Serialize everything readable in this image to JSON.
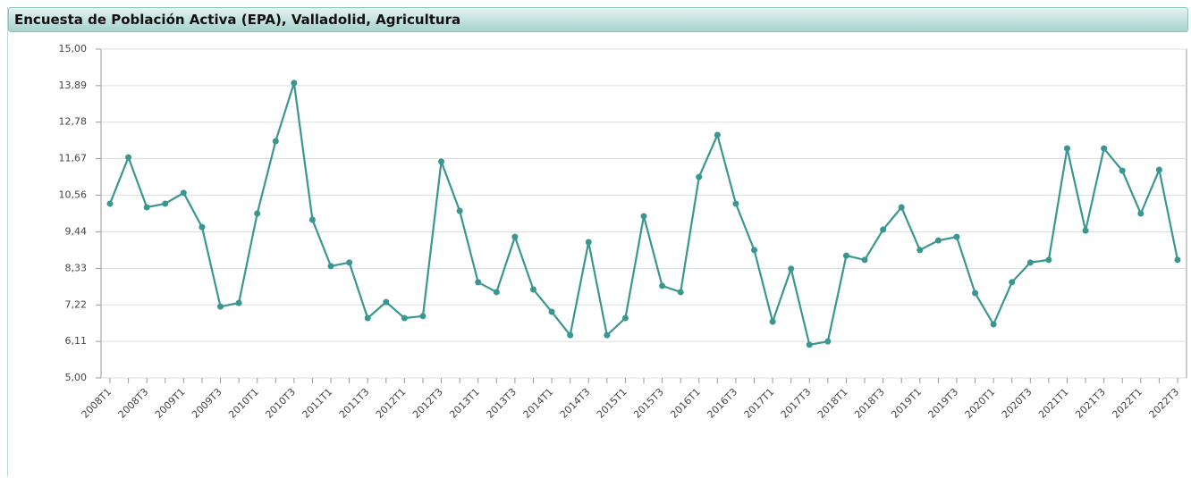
{
  "chart_data": {
    "type": "line",
    "title": "Encuesta de Población Activa (EPA), Valladolid, Agricultura",
    "categories": [
      "2008T1",
      null,
      "2008T3",
      null,
      "2009T1",
      null,
      "2009T3",
      null,
      "2010T1",
      null,
      "2010T3",
      null,
      "2011T1",
      null,
      "2011T3",
      null,
      "2012T1",
      null,
      "2012T3",
      null,
      "2013T1",
      null,
      "2013T3",
      null,
      "2014T1",
      null,
      "2014T3",
      null,
      "2015T1",
      null,
      "2015T3",
      null,
      "2016T1",
      null,
      "2016T3",
      null,
      "2017T1",
      null,
      "2017T3",
      null,
      "2018T1",
      null,
      "2018T3",
      null,
      "2019T1",
      null,
      "2019T3",
      null,
      "2020T1",
      null,
      "2020T3",
      null,
      "2021T1",
      null,
      "2021T3",
      null,
      "2022T1",
      null,
      "2022T3"
    ],
    "series": [
      {
        "color": "#3a9690",
        "values": [
          10.3,
          11.71,
          10.19,
          10.3,
          10.63,
          9.59,
          7.17,
          7.28,
          10.0,
          12.2,
          13.97,
          9.81,
          8.4,
          8.51,
          6.82,
          7.31,
          6.82,
          6.88,
          11.58,
          10.08,
          7.91,
          7.61,
          9.29,
          7.69,
          7.01,
          6.3,
          9.13,
          6.3,
          6.82,
          9.92,
          7.8,
          7.61,
          11.11,
          12.39,
          10.3,
          8.89,
          6.71,
          8.32,
          6.01,
          6.11,
          8.72,
          8.59,
          9.51,
          10.19,
          8.89,
          9.18,
          9.29,
          7.58,
          6.63,
          7.91,
          8.51,
          8.59,
          11.98,
          9.48,
          11.98,
          11.3,
          10.0,
          11.33,
          8.59
        ]
      }
    ],
    "ylim": [
      5,
      15
    ],
    "yticks": [
      {
        "value": 5,
        "label": "5,00"
      },
      {
        "value": 6.11,
        "label": "6,11"
      },
      {
        "value": 7.22,
        "label": "7,22"
      },
      {
        "value": 8.33,
        "label": "8,33"
      },
      {
        "value": 9.44,
        "label": "9,44"
      },
      {
        "value": 10.56,
        "label": "10,56"
      },
      {
        "value": 11.67,
        "label": "11,67"
      },
      {
        "value": 12.78,
        "label": "12,78"
      },
      {
        "value": 13.89,
        "label": "13,89"
      },
      {
        "value": 15,
        "label": "15,00"
      }
    ],
    "grid": true
  }
}
